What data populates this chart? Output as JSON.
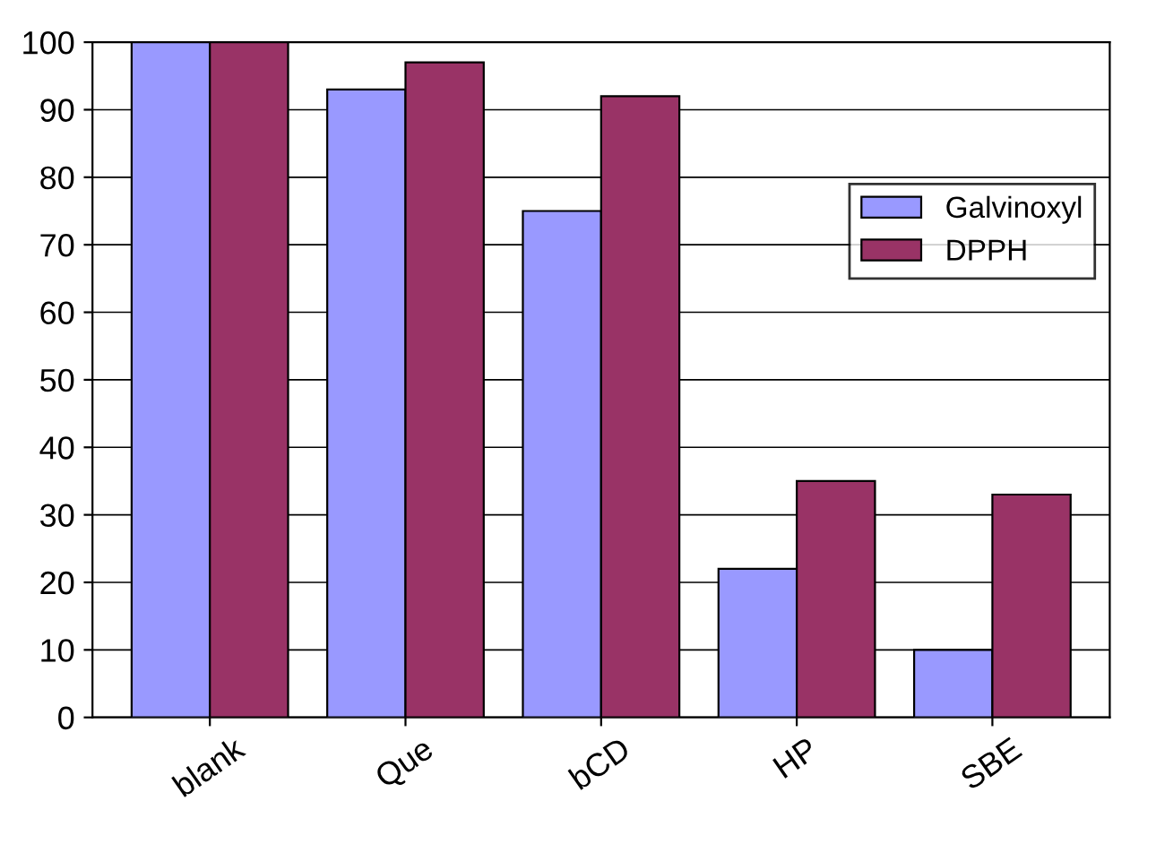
{
  "chart_data": {
    "type": "bar",
    "categories": [
      "blank",
      "Que",
      "bCD",
      "HP",
      "SBE"
    ],
    "series": [
      {
        "name": "Galvinoxyl",
        "color": "#9999ff",
        "values": [
          100,
          93,
          75,
          22,
          10
        ]
      },
      {
        "name": "DPPH",
        "color": "#993366",
        "values": [
          100,
          97,
          92,
          35,
          33
        ]
      }
    ],
    "ylim": [
      0,
      100
    ],
    "yticks": [
      0,
      10,
      20,
      30,
      40,
      50,
      60,
      70,
      80,
      90,
      100
    ],
    "grid": "y",
    "legend": "right"
  }
}
